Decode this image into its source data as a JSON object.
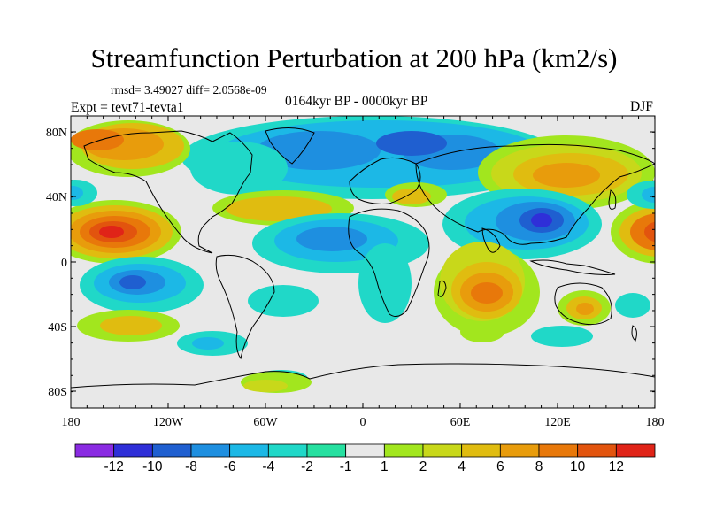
{
  "title": "Streamfunction Perturbation at 200 hPa (km2/s)",
  "stats": "rmsd= 3.49027 diff= 2.0568e-09",
  "experiment": "Expt = tevt71-tevta1",
  "period": "0164kyr BP - 0000kyr BP",
  "season": "DJF",
  "lat_ticks": [
    "80N",
    "40N",
    "0",
    "40S",
    "80S"
  ],
  "lon_ticks": [
    "180",
    "120W",
    "60W",
    "0",
    "60E",
    "120E",
    "180"
  ],
  "colorbar": {
    "colors": [
      "#8a2be2",
      "#2f2fd8",
      "#1f5fd0",
      "#1e8fe0",
      "#1cb8e6",
      "#20d8c8",
      "#26e0a0",
      "#e8e8e8",
      "#a2e61e",
      "#c8d81a",
      "#e0bc10",
      "#e89c0c",
      "#e8780a",
      "#e2540e",
      "#e02418"
    ],
    "labels": [
      "-12",
      "-10",
      "-8",
      "-6",
      "-4",
      "-2",
      "-1",
      "1",
      "2",
      "4",
      "6",
      "8",
      "10",
      "12"
    ]
  },
  "map_background": "#e8e8e8"
}
